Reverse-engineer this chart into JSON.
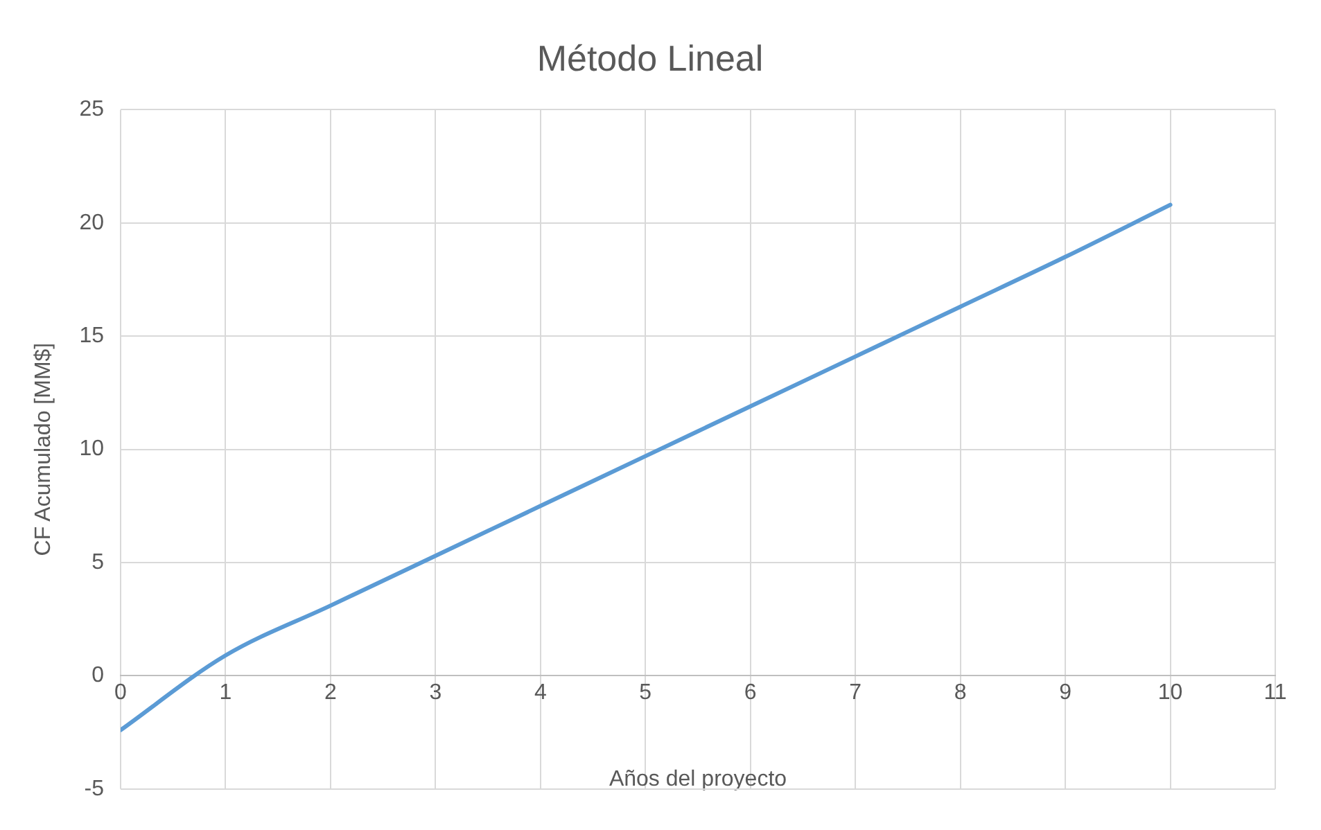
{
  "chart_data": {
    "type": "line",
    "title": "Método Lineal",
    "xlabel": "Años del proyecto",
    "ylabel": "CF Acumulado [MM$]",
    "x": [
      0,
      1,
      2,
      3,
      4,
      5,
      6,
      7,
      8,
      9,
      10
    ],
    "series": [
      {
        "color": "#5b9bd5",
        "values": [
          -2.4,
          0.9,
          3.1,
          5.3,
          7.5,
          9.7,
          11.9,
          14.1,
          16.3,
          18.5,
          20.8
        ]
      }
    ],
    "xlim": [
      0,
      11
    ],
    "xticks": [
      0,
      1,
      2,
      3,
      4,
      5,
      6,
      7,
      8,
      9,
      10,
      11
    ],
    "ylim": [
      -5,
      25
    ],
    "yticks": [
      -5,
      0,
      5,
      10,
      15,
      20,
      25
    ],
    "grid": true,
    "marker": "none",
    "line_style": "solid"
  }
}
